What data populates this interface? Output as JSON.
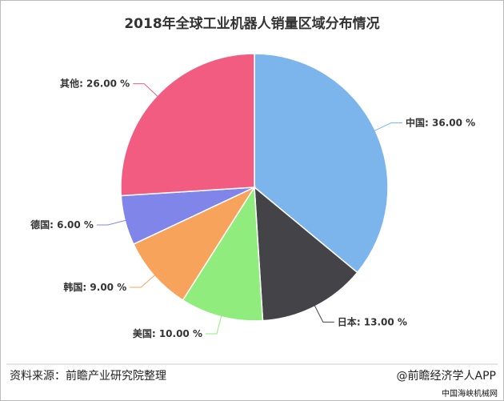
{
  "chart_data": {
    "type": "pie",
    "title": "2018年全球工业机器人销量区域分布情况",
    "categories": [
      "中国",
      "日本",
      "美国",
      "韩国",
      "德国",
      "其他"
    ],
    "values": [
      36,
      13,
      10,
      9,
      6,
      26
    ],
    "value_labels": [
      "36.00 %",
      "13.00 %",
      "10.00 %",
      "9.00 %",
      "6.00 %",
      "26.00 %"
    ],
    "colors": [
      "#7cb5ec",
      "#434348",
      "#90ed7d",
      "#f7a35c",
      "#8085e9",
      "#f15c80"
    ],
    "source": "资料来源：前瞻产业研究院整理",
    "brand": "@前瞻经济学人APP",
    "site": "中国海峡机械网"
  }
}
